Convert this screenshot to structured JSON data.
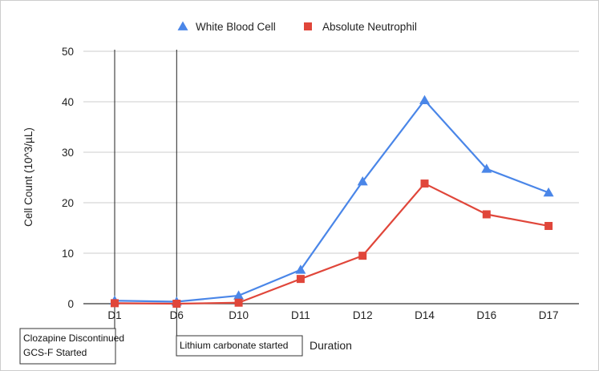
{
  "chart_data": {
    "type": "line",
    "title": "",
    "xlabel": "Duration",
    "ylabel": "Cell Count (10^3/µL)",
    "categories": [
      "D1",
      "D6",
      "D10",
      "D11",
      "D12",
      "D14",
      "D16",
      "D17"
    ],
    "ylim": [
      0,
      50
    ],
    "yticks": [
      "0",
      "10",
      "20",
      "30",
      "40",
      "50"
    ],
    "grid": true,
    "legend_position": "top",
    "series": [
      {
        "name": "White Blood Cell",
        "marker": "triangle",
        "color": "#4a86e8",
        "values": [
          0.6,
          0.4,
          1.6,
          6.7,
          24.2,
          40.3,
          26.7,
          22.0
        ]
      },
      {
        "name": "Absolute Neutrophil",
        "marker": "square",
        "color": "#e0463a",
        "values": [
          0.1,
          0.0,
          0.2,
          4.9,
          9.5,
          23.8,
          17.7,
          15.4
        ]
      }
    ],
    "annotations": [
      {
        "category": "D1",
        "lines": [
          "Clozapine Discontinued",
          "GCS-F Started"
        ]
      },
      {
        "category": "D6",
        "lines": [
          "Lithium carbonate started"
        ]
      }
    ]
  }
}
